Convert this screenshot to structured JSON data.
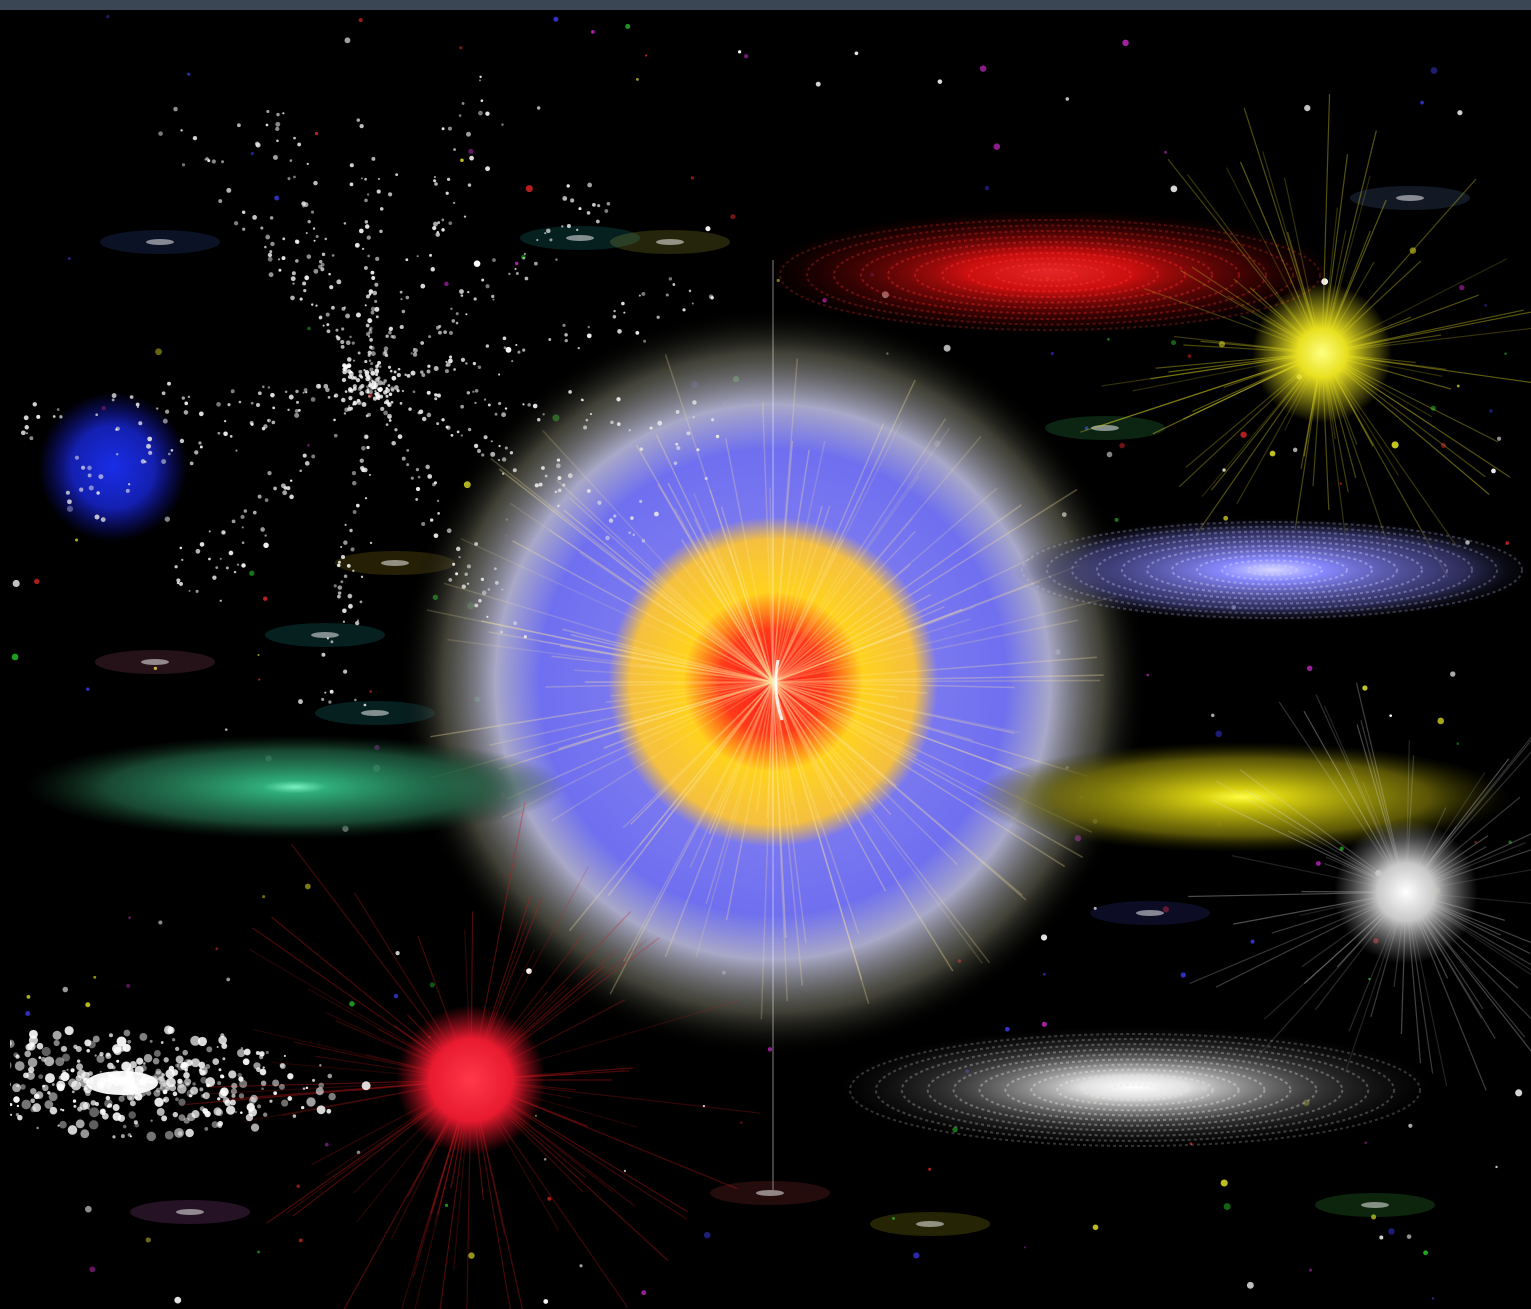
{
  "scene": {
    "background": "#000000",
    "frame_color": "#3a4654",
    "objects": [
      {
        "kind": "central-burst",
        "colors": [
          "#ff2a1a",
          "#ffd21e",
          "#6f6ff0",
          "#cfcfb0"
        ]
      },
      {
        "kind": "star",
        "color": "#e8e020",
        "name": "yellow-star"
      },
      {
        "kind": "star",
        "color": "#1a2dd8",
        "name": "blue-star"
      },
      {
        "kind": "star",
        "color": "#ff2a3a",
        "name": "red-star"
      },
      {
        "kind": "star",
        "color": "#f2f2f2",
        "name": "white-star"
      },
      {
        "kind": "disk-galaxy",
        "color": "#ff1a1a",
        "name": "red-galaxy"
      },
      {
        "kind": "disk-galaxy",
        "color": "#8888ff",
        "name": "blue-spiral-galaxy"
      },
      {
        "kind": "disk-galaxy",
        "color": "#2fae7a",
        "name": "green-galaxy"
      },
      {
        "kind": "disk-galaxy",
        "color": "#d8d010",
        "name": "yellow-galaxy"
      },
      {
        "kind": "disk-galaxy",
        "color": "#ffffff",
        "name": "white-galaxy"
      },
      {
        "kind": "particle-galaxy",
        "color": "#ffffff",
        "name": "white-particle-galaxy"
      },
      {
        "kind": "star-cluster",
        "color": "#dddddd",
        "name": "dotted-star-cluster"
      }
    ]
  }
}
